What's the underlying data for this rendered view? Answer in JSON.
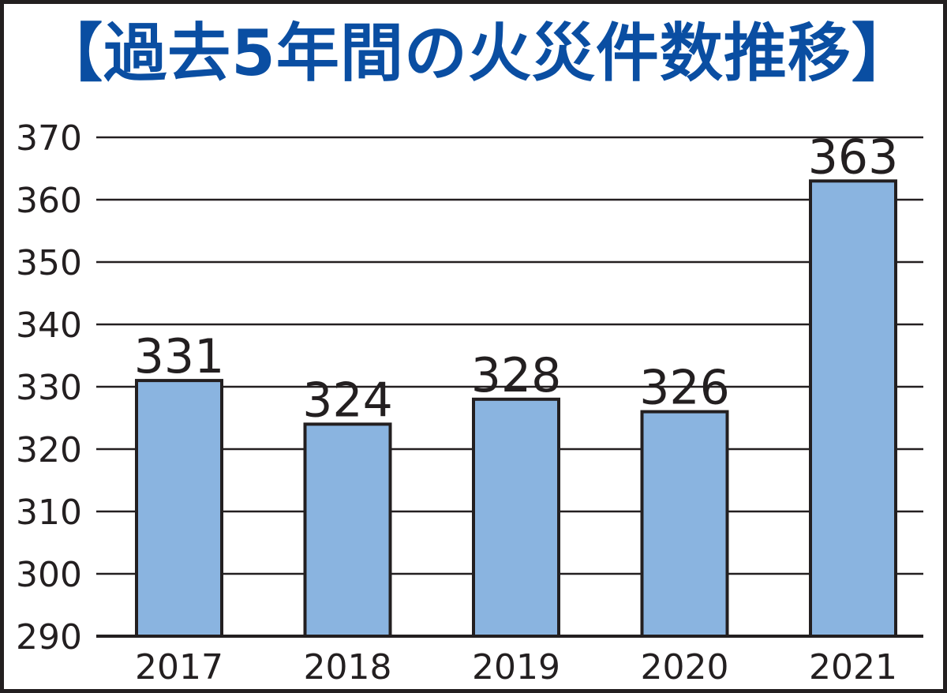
{
  "chart_data": {
    "type": "bar",
    "title": "【過去5年間の火災件数推移】",
    "categories": [
      "2017",
      "2018",
      "2019",
      "2020",
      "2021"
    ],
    "values": [
      331,
      324,
      328,
      326,
      363
    ],
    "data_labels": [
      "331",
      "324",
      "328",
      "326",
      "363"
    ],
    "y_ticks": [
      "290",
      "300",
      "310",
      "320",
      "330",
      "340",
      "350",
      "360",
      "370"
    ],
    "ylim": [
      290,
      370
    ],
    "grid": true,
    "legend": "none",
    "bar_color": "#8ab4e0",
    "title_color": "#0a4ea2",
    "line_color": "#231f20"
  }
}
